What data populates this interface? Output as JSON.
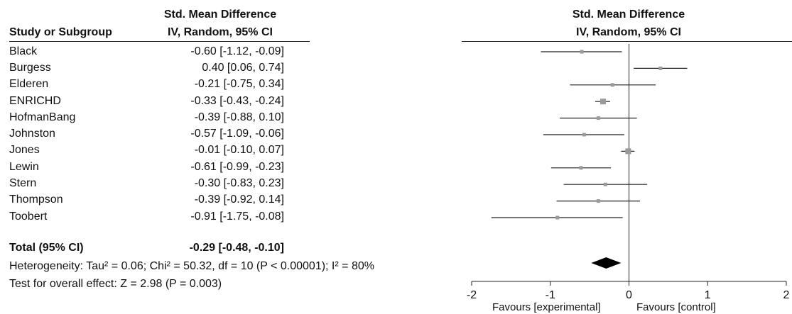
{
  "table": {
    "col1_header": "Study or Subgroup",
    "col2_header_line1": "Std. Mean Difference",
    "col2_header_line2": "IV, Random, 95% CI",
    "rows": [
      {
        "study": "Black",
        "ci_text": "-0.60 [-1.12, -0.09]"
      },
      {
        "study": "Burgess",
        "ci_text": "0.40 [0.06, 0.74]"
      },
      {
        "study": "Elderen",
        "ci_text": "-0.21 [-0.75, 0.34]"
      },
      {
        "study": "ENRICHD",
        "ci_text": "-0.33 [-0.43, -0.24]"
      },
      {
        "study": "HofmanBang",
        "ci_text": "-0.39 [-0.88, 0.10]"
      },
      {
        "study": "Johnston",
        "ci_text": "-0.57 [-1.09, -0.06]"
      },
      {
        "study": "Jones",
        "ci_text": "-0.01 [-0.10, 0.07]"
      },
      {
        "study": "Lewin",
        "ci_text": "-0.61 [-0.99, -0.23]"
      },
      {
        "study": "Stern",
        "ci_text": "-0.30 [-0.83, 0.23]"
      },
      {
        "study": "Thompson",
        "ci_text": "-0.39 [-0.92, 0.14]"
      },
      {
        "study": "Toobert",
        "ci_text": "-0.91 [-1.75, -0.08]"
      }
    ],
    "total": {
      "label": "Total (95% CI)",
      "ci_text": "-0.29 [-0.48, -0.10]"
    },
    "heterogeneity": "Heterogeneity: Tau² = 0.06; Chi² = 50.32, df = 10 (P < 0.00001); I² = 80%",
    "overall_effect": "Test for overall effect: Z = 2.98 (P = 0.003)"
  },
  "plot": {
    "header_line1": "Std. Mean Difference",
    "header_line2": "IV, Random, 95% CI",
    "favours_left": "Favours [experimental]",
    "favours_right": "Favours [control]"
  },
  "chart_data": {
    "type": "forest",
    "xlim": [
      -2,
      2
    ],
    "xticks": [
      -2,
      -1,
      0,
      1,
      2
    ],
    "xtick_labels": [
      "-2",
      "-1",
      "0",
      "1",
      "2"
    ],
    "null_line": 0,
    "studies": [
      {
        "name": "Black",
        "estimate": -0.6,
        "lower": -1.12,
        "upper": -0.09
      },
      {
        "name": "Burgess",
        "estimate": 0.4,
        "lower": 0.06,
        "upper": 0.74
      },
      {
        "name": "Elderen",
        "estimate": -0.21,
        "lower": -0.75,
        "upper": 0.34
      },
      {
        "name": "ENRICHD",
        "estimate": -0.33,
        "lower": -0.43,
        "upper": -0.24
      },
      {
        "name": "HofmanBang",
        "estimate": -0.39,
        "lower": -0.88,
        "upper": 0.1
      },
      {
        "name": "Johnston",
        "estimate": -0.57,
        "lower": -1.09,
        "upper": -0.06
      },
      {
        "name": "Jones",
        "estimate": -0.01,
        "lower": -0.1,
        "upper": 0.07
      },
      {
        "name": "Lewin",
        "estimate": -0.61,
        "lower": -0.99,
        "upper": -0.23
      },
      {
        "name": "Stern",
        "estimate": -0.3,
        "lower": -0.83,
        "upper": 0.23
      },
      {
        "name": "Thompson",
        "estimate": -0.39,
        "lower": -0.92,
        "upper": 0.14
      },
      {
        "name": "Toobert",
        "estimate": -0.91,
        "lower": -1.75,
        "upper": -0.08
      }
    ],
    "total": {
      "name": "Total (95% CI)",
      "estimate": -0.29,
      "lower": -0.48,
      "upper": -0.1
    },
    "colors": {
      "marker": "#9a9a9a",
      "line": "#222222",
      "diamond": "#000000"
    }
  }
}
